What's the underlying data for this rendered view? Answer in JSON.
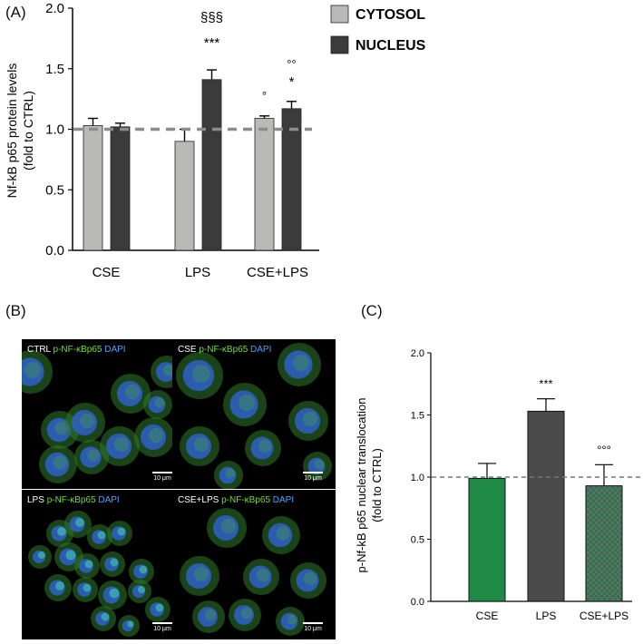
{
  "panels": {
    "a": "(A)",
    "b": "(B)",
    "c": "(C)"
  },
  "chart_data": [
    {
      "type": "bar",
      "ylabel_line1": "Nf-kB p65 protein levels",
      "ylabel_line2": "(fold to CTRL)",
      "categories": [
        "CSE",
        "LPS",
        "CSE+LPS"
      ],
      "ylim": [
        0,
        2.0
      ],
      "yticks": [
        "0.0",
        "0.5",
        "1.0",
        "1.5",
        "2.0"
      ],
      "reference_line": 1.0,
      "series": [
        {
          "name": "CYTOSOL",
          "color": "#b9bab8",
          "values": [
            1.03,
            0.9,
            1.09
          ],
          "errors": [
            0.06,
            0.1,
            0.02
          ]
        },
        {
          "name": "NUCLEUS",
          "color": "#3b3b3b",
          "values": [
            1.02,
            1.41,
            1.17
          ],
          "errors": [
            0.03,
            0.08,
            0.06
          ]
        }
      ],
      "annotations": [
        {
          "category": 1,
          "series": 1,
          "lines": [
            "§§§",
            "***"
          ]
        },
        {
          "category": 2,
          "series": 0,
          "lines": [
            "°"
          ]
        },
        {
          "category": 2,
          "series": 1,
          "lines": [
            "°°",
            "*"
          ]
        }
      ]
    },
    {
      "type": "bar",
      "ylabel_line1": "p-Nf-kB p65 nuclear translocation",
      "ylabel_line2": "(fold to CTRL)",
      "categories": [
        "CSE",
        "LPS",
        "CSE+LPS"
      ],
      "ylim": [
        0,
        2.0
      ],
      "yticks": [
        "0.0",
        "0.5",
        "1.0",
        "1.5",
        "2.0"
      ],
      "reference_line": 1.0,
      "values": [
        0.99,
        1.53,
        0.93
      ],
      "errors": [
        0.12,
        0.1,
        0.17
      ],
      "colors": [
        "#1e8a46",
        "#4b4b4b",
        "#2f7e55"
      ],
      "patterns": [
        "none",
        "none",
        "checker"
      ],
      "annotations": [
        "",
        "***",
        "°°°"
      ]
    }
  ],
  "micrographs": [
    {
      "condition": "CTRL",
      "marker": "p-NF-κBp65",
      "stain": "DAPI",
      "scale": "10 μm"
    },
    {
      "condition": "CSE",
      "marker": "p-NF-κBp65",
      "stain": "DAPI",
      "scale": "10 μm"
    },
    {
      "condition": "LPS",
      "marker": "p-NF-κBp65",
      "stain": "DAPI",
      "scale": "10 μm"
    },
    {
      "condition": "CSE+LPS",
      "marker": "p-NF-κBp65",
      "stain": "DAPI",
      "scale": "10 μm"
    }
  ]
}
